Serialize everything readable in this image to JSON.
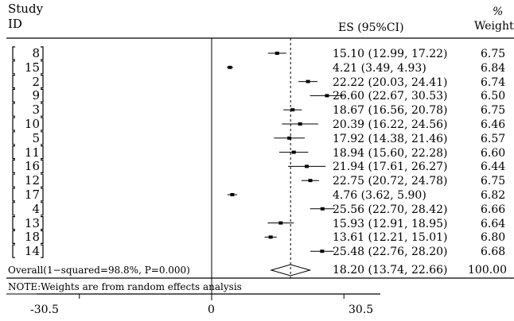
{
  "header": {
    "study_line1": "Study",
    "study_line2": "ID",
    "es_label": "ES (95%CI)",
    "weight_line1": "%",
    "weight_line2": "Weight"
  },
  "chart_data": {
    "type": "forest",
    "x_ticks": [
      "-30.5",
      "0",
      "30.5"
    ],
    "xlim": [
      -30.5,
      30.5
    ],
    "null_line": 0,
    "overall_line": 18.2,
    "studies": [
      {
        "id": "8",
        "es": 15.1,
        "lo": 12.99,
        "hi": 17.22,
        "es_text": "15.10 (12.99, 17.22)",
        "weight": "6.75"
      },
      {
        "id": "15",
        "es": 4.21,
        "lo": 3.49,
        "hi": 4.93,
        "es_text": "4.21 (3.49, 4.93)",
        "weight": "6.84"
      },
      {
        "id": "2",
        "es": 22.22,
        "lo": 20.03,
        "hi": 24.41,
        "es_text": "22.22 (20.03, 24.41)",
        "weight": "6.74"
      },
      {
        "id": "9",
        "es": 26.6,
        "lo": 22.67,
        "hi": 30.53,
        "es_text": "26.60 (22.67, 30.53)",
        "weight": "6.50"
      },
      {
        "id": "3",
        "es": 18.67,
        "lo": 16.56,
        "hi": 20.78,
        "es_text": "18.67 (16.56, 20.78)",
        "weight": "6.75"
      },
      {
        "id": "10",
        "es": 20.39,
        "lo": 16.22,
        "hi": 24.56,
        "es_text": "20.39 (16.22, 24.56)",
        "weight": "6.46"
      },
      {
        "id": "5",
        "es": 17.92,
        "lo": 14.38,
        "hi": 21.46,
        "es_text": "17.92 (14.38, 21.46)",
        "weight": "6.57"
      },
      {
        "id": "11",
        "es": 18.94,
        "lo": 15.6,
        "hi": 22.28,
        "es_text": "18.94 (15.60, 22.28)",
        "weight": "6.60"
      },
      {
        "id": "16",
        "es": 21.94,
        "lo": 17.61,
        "hi": 26.27,
        "es_text": "21.94 (17.61, 26.27)",
        "weight": "6.44"
      },
      {
        "id": "12",
        "es": 22.75,
        "lo": 20.72,
        "hi": 24.78,
        "es_text": "22.75 (20.72, 24.78)",
        "weight": "6.75"
      },
      {
        "id": "17",
        "es": 4.76,
        "lo": 3.62,
        "hi": 5.9,
        "es_text": "4.76 (3.62, 5.90)",
        "weight": "6.82"
      },
      {
        "id": "4",
        "es": 25.56,
        "lo": 22.7,
        "hi": 28.42,
        "es_text": "25.56 (22.70, 28.42)",
        "weight": "6.66"
      },
      {
        "id": "13",
        "es": 15.93,
        "lo": 12.91,
        "hi": 18.95,
        "es_text": "15.93 (12.91, 18.95)",
        "weight": "6.64"
      },
      {
        "id": "18",
        "es": 13.61,
        "lo": 12.21,
        "hi": 15.01,
        "es_text": "13.61 (12.21, 15.01)",
        "weight": "6.80"
      },
      {
        "id": "14",
        "es": 25.48,
        "lo": 22.76,
        "hi": 28.2,
        "es_text": "25.48 (22.76, 28.20)",
        "weight": "6.68"
      }
    ],
    "overall": {
      "label": "Overall(1−squared=98.8%, P=0.000)",
      "es": 18.2,
      "lo": 13.74,
      "hi": 22.66,
      "es_text": "18.20 (13.74, 22.66)",
      "weight": "100.00"
    },
    "note": "NOTE:Weights are from random effects analysis"
  }
}
